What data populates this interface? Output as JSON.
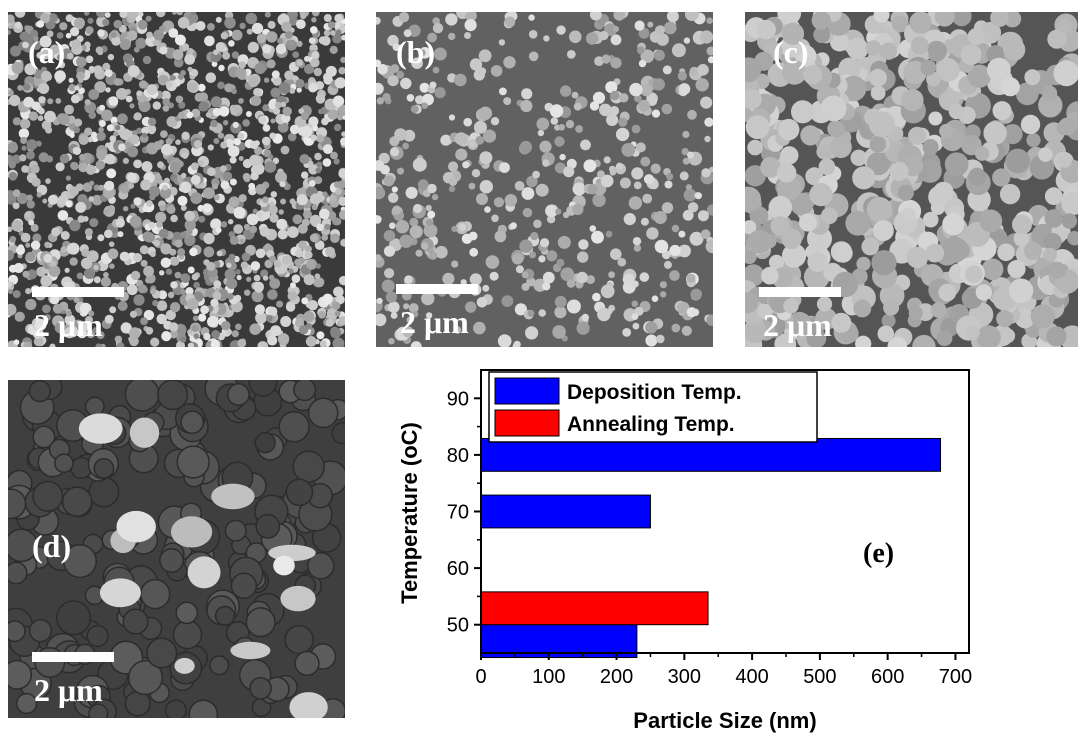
{
  "panels": [
    {
      "label": "(a)",
      "scale": "2 μm"
    },
    {
      "label": "(b)",
      "scale": "2 μm"
    },
    {
      "label": "(c)",
      "scale": "2 μm"
    },
    {
      "label": "(d)",
      "scale": "2 μm"
    }
  ],
  "chart_data": {
    "type": "bar",
    "orientation": "horizontal",
    "panel_label": "(e)",
    "xlabel": "Particle Size (nm)",
    "ylabel": "Temperature (oC)",
    "xlim": [
      0,
      720
    ],
    "ylim": [
      45,
      95
    ],
    "xticks": [
      0,
      100,
      200,
      300,
      400,
      500,
      600,
      700
    ],
    "yticks": [
      50,
      60,
      70,
      80,
      90
    ],
    "legend_position": "top-left",
    "series": [
      {
        "name": "Deposition Temp.",
        "color": "#0000ff",
        "points": [
          {
            "temperature": 50,
            "value": 230
          },
          {
            "temperature": 70,
            "value": 250
          },
          {
            "temperature": 80,
            "value": 678
          }
        ]
      },
      {
        "name": "Annealing Temp.",
        "color": "#ff0000",
        "points": [
          {
            "temperature": 50,
            "value": 335
          }
        ]
      }
    ]
  }
}
